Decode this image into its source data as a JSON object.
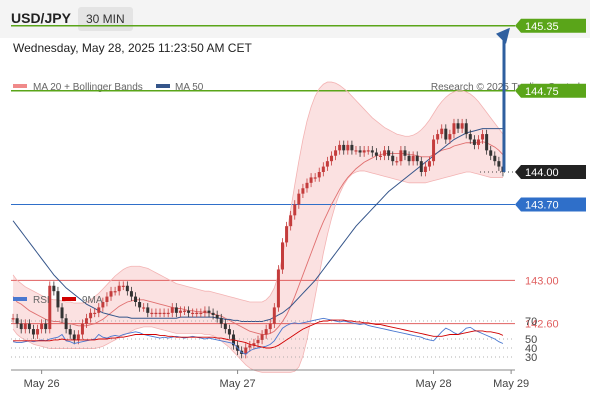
{
  "header": {
    "symbol": "USD/JPY",
    "timeframe": "30 MIN",
    "timestamp": "Wednesday, May 28, 2025 11:23:50 AM CET"
  },
  "legend": {
    "ma20": "MA 20 + Bollinger Bands",
    "ma50": "MA 50",
    "credit": "Research © 2025 Trading Central",
    "rsi": "RSI",
    "rsi_ma": "9MA"
  },
  "colors": {
    "resistance": "#5aa519",
    "current": "#222222",
    "support_blue": "#2f6fc9",
    "support_red": "#e06060",
    "arrow": "#2f5f9f",
    "candle_up": "#c43c3c",
    "candle_dn": "#333333",
    "bollinger": "#f8c8c8",
    "ma20": "#e07070",
    "ma50": "#35558a",
    "rsi": "#4a78d0",
    "rsi_ma": "#d00000"
  },
  "chart_data": {
    "type": "line",
    "title": "USD/JPY",
    "price_levels": [
      {
        "label": "145.35",
        "value": 145.35,
        "kind": "resistance"
      },
      {
        "label": "144.75",
        "value": 144.75,
        "kind": "resistance"
      },
      {
        "label": "144.00",
        "value": 144.0,
        "kind": "current"
      },
      {
        "label": "143.70",
        "value": 143.7,
        "kind": "support"
      },
      {
        "label": "143.00",
        "value": 143.0,
        "kind": "support"
      },
      {
        "label": "142.60",
        "value": 142.6,
        "kind": "support"
      }
    ],
    "x_ticks": [
      "May 26",
      "May 27",
      "May 28",
      "May 29"
    ],
    "x_tick_index": [
      7,
      55,
      103,
      122
    ],
    "series": [
      {
        "name": "USD/JPY",
        "close": [
          142.65,
          142.6,
          142.55,
          142.6,
          142.55,
          142.5,
          142.55,
          142.6,
          142.55,
          142.95,
          142.9,
          142.75,
          142.65,
          142.55,
          142.5,
          142.45,
          142.5,
          142.6,
          142.65,
          142.7,
          142.7,
          142.75,
          142.8,
          142.85,
          142.9,
          142.9,
          142.95,
          142.95,
          142.9,
          142.85,
          142.8,
          142.75,
          142.75,
          142.7,
          142.7,
          142.7,
          142.7,
          142.7,
          142.7,
          142.75,
          142.7,
          142.72,
          142.72,
          142.7,
          142.7,
          142.7,
          142.7,
          142.72,
          142.7,
          142.68,
          142.65,
          142.6,
          142.55,
          142.5,
          142.4,
          142.35,
          142.32,
          142.38,
          142.4,
          142.42,
          142.45,
          142.5,
          142.55,
          142.6,
          142.75,
          143.1,
          143.35,
          143.5,
          143.6,
          143.7,
          143.8,
          143.85,
          143.9,
          143.95,
          143.95,
          144.0,
          144.05,
          144.1,
          144.15,
          144.2,
          144.25,
          144.2,
          144.25,
          144.2,
          144.2,
          144.18,
          144.2,
          144.2,
          144.18,
          144.15,
          144.15,
          144.2,
          144.15,
          144.1,
          144.1,
          144.2,
          144.15,
          144.1,
          144.15,
          144.1,
          144.0,
          144.05,
          144.1,
          144.3,
          144.35,
          144.4,
          144.3,
          144.35,
          144.45,
          144.4,
          144.45,
          144.35,
          144.3,
          144.25,
          144.3,
          144.35,
          144.2,
          144.15,
          144.1,
          144.05,
          144.0
        ],
        "ma20": [
          142.85,
          142.8,
          142.78,
          142.75,
          142.72,
          142.7,
          142.68,
          142.66,
          142.64,
          142.63,
          142.62,
          142.62,
          142.61,
          142.6,
          142.6,
          142.59,
          142.58,
          142.58,
          142.58,
          142.59,
          142.6,
          142.62,
          142.64,
          142.67,
          142.7,
          142.73,
          142.76,
          142.78,
          142.8,
          142.81,
          142.82,
          142.82,
          142.82,
          142.81,
          142.8,
          142.79,
          142.78,
          142.77,
          142.76,
          142.75,
          142.74,
          142.74,
          142.73,
          142.72,
          142.72,
          142.71,
          142.71,
          142.7,
          142.7,
          142.69,
          142.68,
          142.67,
          142.65,
          142.63,
          142.61,
          142.59,
          142.57,
          142.55,
          142.53,
          142.52,
          142.51,
          142.5,
          142.5,
          142.51,
          142.53,
          142.57,
          142.62,
          142.68,
          142.76,
          142.85,
          142.95,
          143.05,
          143.15,
          143.25,
          143.35,
          143.45,
          143.54,
          143.62,
          143.7,
          143.77,
          143.84,
          143.9,
          143.95,
          143.99,
          144.03,
          144.06,
          144.09,
          144.11,
          144.13,
          144.15,
          144.16,
          144.17,
          144.17,
          144.17,
          144.17,
          144.17,
          144.17,
          144.16,
          144.16,
          144.15,
          144.14,
          144.14,
          144.14,
          144.16,
          144.18,
          144.2,
          144.21,
          144.22,
          144.24,
          144.25,
          144.26,
          144.27,
          144.27,
          144.27,
          144.27,
          144.28,
          144.27,
          144.25,
          144.23,
          144.2,
          144.16
        ],
        "ma50": [
          143.55,
          143.5,
          143.45,
          143.4,
          143.35,
          143.3,
          143.25,
          143.2,
          143.15,
          143.1,
          143.05,
          143.01,
          142.97,
          142.93,
          142.9,
          142.87,
          142.84,
          142.81,
          142.78,
          142.76,
          142.74,
          142.72,
          142.7,
          142.69,
          142.68,
          142.67,
          142.66,
          142.66,
          142.66,
          142.65,
          142.65,
          142.65,
          142.65,
          142.65,
          142.65,
          142.65,
          142.65,
          142.65,
          142.65,
          142.65,
          142.65,
          142.66,
          142.66,
          142.66,
          142.66,
          142.66,
          142.66,
          142.66,
          142.66,
          142.66,
          142.65,
          142.65,
          142.64,
          142.64,
          142.63,
          142.63,
          142.62,
          142.62,
          142.62,
          142.62,
          142.62,
          142.62,
          142.63,
          142.64,
          142.66,
          142.68,
          142.7,
          142.73,
          142.76,
          142.8,
          142.84,
          142.88,
          142.92,
          142.96,
          143.0,
          143.05,
          143.1,
          143.15,
          143.2,
          143.25,
          143.3,
          143.35,
          143.4,
          143.45,
          143.5,
          143.54,
          143.58,
          143.62,
          143.66,
          143.7,
          143.74,
          143.78,
          143.82,
          143.85,
          143.88,
          143.91,
          143.94,
          143.97,
          144.0,
          144.03,
          144.06,
          144.09,
          144.12,
          144.15,
          144.18,
          144.21,
          144.24,
          144.27,
          144.3,
          144.32,
          144.34,
          144.36,
          144.37,
          144.38,
          144.39,
          144.4,
          144.4,
          144.4,
          144.4,
          144.4,
          144.4
        ],
        "bb_upper": [
          143.05,
          143.0,
          142.97,
          142.94,
          142.92,
          142.9,
          142.88,
          142.86,
          142.84,
          142.83,
          142.82,
          142.82,
          142.81,
          142.8,
          142.8,
          142.79,
          142.79,
          142.79,
          142.8,
          142.82,
          142.85,
          142.88,
          142.92,
          142.96,
          143.0,
          143.04,
          143.07,
          143.1,
          143.12,
          143.13,
          143.13,
          143.13,
          143.12,
          143.11,
          143.09,
          143.07,
          143.05,
          143.03,
          143.01,
          142.99,
          142.97,
          142.96,
          142.95,
          142.94,
          142.93,
          142.92,
          142.91,
          142.9,
          142.9,
          142.89,
          142.88,
          142.87,
          142.86,
          142.85,
          142.84,
          142.83,
          142.82,
          142.81,
          142.8,
          142.8,
          142.8,
          142.8,
          142.82,
          142.86,
          142.93,
          143.05,
          143.22,
          143.42,
          143.65,
          143.88,
          144.1,
          144.3,
          144.47,
          144.6,
          144.7,
          144.77,
          144.81,
          144.83,
          144.83,
          144.82,
          144.8,
          144.77,
          144.74,
          144.7,
          144.66,
          144.62,
          144.58,
          144.54,
          144.5,
          144.47,
          144.44,
          144.41,
          144.39,
          144.37,
          144.35,
          144.34,
          144.33,
          144.33,
          144.34,
          144.36,
          144.39,
          144.43,
          144.48,
          144.54,
          144.6,
          144.65,
          144.69,
          144.72,
          144.74,
          144.75,
          144.75,
          144.74,
          144.72,
          144.69,
          144.65,
          144.6,
          144.55,
          144.5,
          144.45,
          144.4,
          144.35
        ],
        "bb_lower": [
          142.55,
          142.5,
          142.47,
          142.45,
          142.43,
          142.41,
          142.4,
          142.39,
          142.38,
          142.37,
          142.37,
          142.37,
          142.37,
          142.37,
          142.37,
          142.37,
          142.37,
          142.37,
          142.37,
          142.37,
          142.37,
          142.38,
          142.39,
          142.41,
          142.43,
          142.45,
          142.47,
          142.49,
          142.51,
          142.53,
          142.55,
          142.56,
          142.57,
          142.57,
          142.57,
          142.56,
          142.55,
          142.54,
          142.53,
          142.52,
          142.51,
          142.51,
          142.51,
          142.51,
          142.51,
          142.51,
          142.51,
          142.5,
          142.5,
          142.49,
          142.47,
          142.44,
          142.41,
          142.38,
          142.34,
          142.3,
          142.26,
          142.22,
          142.19,
          142.17,
          142.16,
          142.15,
          142.15,
          142.15,
          142.15,
          142.15,
          142.15,
          142.15,
          142.15,
          142.16,
          142.2,
          142.3,
          142.45,
          142.65,
          142.85,
          143.05,
          143.25,
          143.42,
          143.57,
          143.7,
          143.8,
          143.88,
          143.94,
          143.98,
          144.0,
          144.01,
          144.01,
          144.0,
          143.99,
          143.98,
          143.97,
          143.96,
          143.95,
          143.94,
          143.93,
          143.92,
          143.91,
          143.9,
          143.9,
          143.9,
          143.9,
          143.9,
          143.91,
          143.92,
          143.93,
          143.94,
          143.95,
          143.96,
          143.97,
          143.98,
          143.99,
          144.0,
          144.0,
          143.99,
          143.98,
          143.97,
          143.96,
          143.95,
          143.95,
          143.95,
          143.95
        ]
      }
    ],
    "forecast_arrow": {
      "from": 144.0,
      "to": 145.35
    },
    "rsi": {
      "name": "RSI",
      "ticks": [
        70,
        50,
        40,
        30
      ],
      "values": [
        47,
        46,
        46,
        47,
        48,
        47,
        48,
        49,
        48,
        50,
        51,
        52,
        55,
        48,
        47,
        45,
        46,
        47,
        48,
        49,
        50,
        55,
        52,
        51,
        53,
        54,
        53,
        55,
        56,
        57,
        58,
        57,
        55,
        54,
        53,
        52,
        51,
        52,
        51,
        52,
        53,
        52,
        51,
        52,
        53,
        52,
        51,
        50,
        51,
        50,
        49,
        48,
        47,
        46,
        45,
        40,
        35,
        33,
        37,
        39,
        40,
        41,
        42,
        44,
        48,
        55,
        62,
        65,
        67,
        68,
        67,
        68,
        69,
        70,
        71,
        72,
        73,
        72,
        71,
        70,
        69,
        70,
        69,
        68,
        67,
        66,
        67,
        65,
        64,
        63,
        62,
        61,
        60,
        59,
        58,
        57,
        56,
        55,
        54,
        53,
        52,
        50,
        49,
        48,
        53,
        58,
        62,
        60,
        57,
        55,
        58,
        62,
        63,
        60,
        58,
        56,
        54,
        52,
        50,
        47,
        45
      ],
      "ma9": [
        48,
        48,
        48,
        48,
        48,
        48,
        48,
        48,
        48,
        48,
        49,
        49,
        50,
        49,
        49,
        49,
        49,
        49,
        49,
        49,
        49,
        50,
        50,
        50,
        51,
        51,
        52,
        52,
        53,
        54,
        55,
        55,
        55,
        55,
        55,
        55,
        54,
        54,
        53,
        53,
        52,
        52,
        52,
        52,
        52,
        52,
        52,
        52,
        52,
        52,
        51,
        51,
        50,
        49,
        49,
        48,
        47,
        46,
        44,
        43,
        42,
        41,
        40,
        40,
        41,
        43,
        46,
        49,
        52,
        55,
        58,
        61,
        63,
        65,
        67,
        69,
        70,
        70,
        71,
        71,
        71,
        71,
        70,
        70,
        69,
        69,
        68,
        68,
        67,
        66,
        66,
        65,
        64,
        63,
        62,
        61,
        60,
        59,
        58,
        57,
        56,
        55,
        54,
        53,
        53,
        53,
        54,
        55,
        55,
        55,
        56,
        57,
        58,
        59,
        59,
        59,
        58,
        58,
        57,
        56,
        54
      ]
    }
  }
}
